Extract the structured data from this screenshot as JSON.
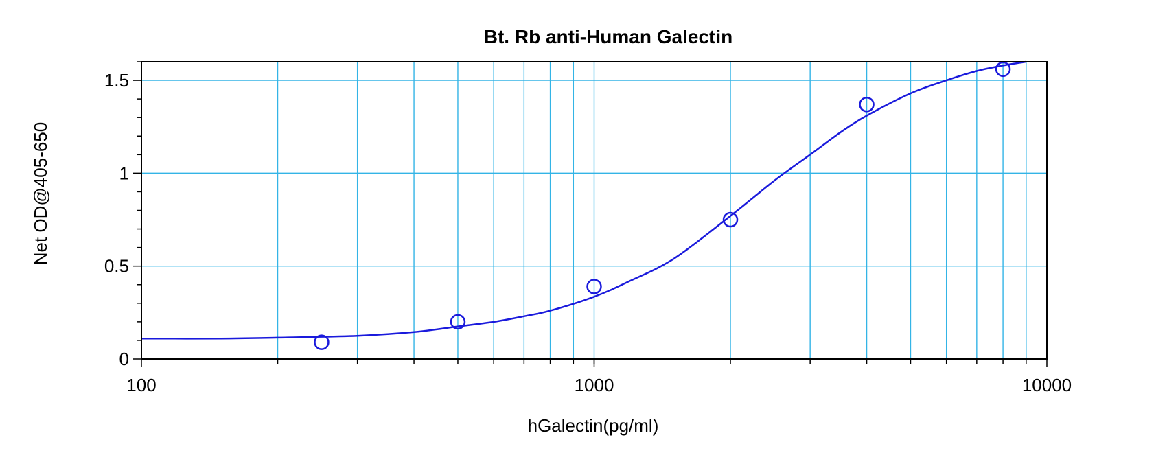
{
  "chart_data": {
    "type": "scatter",
    "title": "Bt. Rb anti-Human Galectin",
    "xlabel": "hGalectin(pg/ml)",
    "ylabel": "Net OD@405-650",
    "x_scale": "log",
    "xlim": [
      100,
      10000
    ],
    "ylim": [
      0,
      1.6
    ],
    "x_ticks": [
      100,
      1000,
      10000
    ],
    "x_tick_labels": [
      "100",
      "1000",
      "10000"
    ],
    "y_ticks": [
      0,
      0.5,
      1,
      1.5
    ],
    "y_tick_labels": [
      "0",
      "0.5",
      "1",
      "1.5"
    ],
    "grid": true,
    "series": [
      {
        "points": [
          {
            "x": 250,
            "y": 0.09
          },
          {
            "x": 500,
            "y": 0.2
          },
          {
            "x": 1000,
            "y": 0.39
          },
          {
            "x": 2000,
            "y": 0.75
          },
          {
            "x": 4000,
            "y": 1.37
          },
          {
            "x": 8000,
            "y": 1.56
          }
        ],
        "fit_curve": {
          "x": [
            100,
            150,
            200,
            300,
            400,
            500,
            600,
            700,
            800,
            1000,
            1200,
            1500,
            2000,
            2500,
            3000,
            3500,
            4000,
            5000,
            6000,
            7000,
            8000,
            9000
          ],
          "y": [
            0.11,
            0.11,
            0.115,
            0.125,
            0.145,
            0.175,
            0.2,
            0.23,
            0.26,
            0.335,
            0.42,
            0.54,
            0.77,
            0.96,
            1.1,
            1.22,
            1.31,
            1.43,
            1.5,
            1.55,
            1.58,
            1.6
          ]
        }
      }
    ],
    "colors": {
      "series": "#1a1adc",
      "grid": "#33b4e6",
      "axis": "#000000"
    }
  }
}
